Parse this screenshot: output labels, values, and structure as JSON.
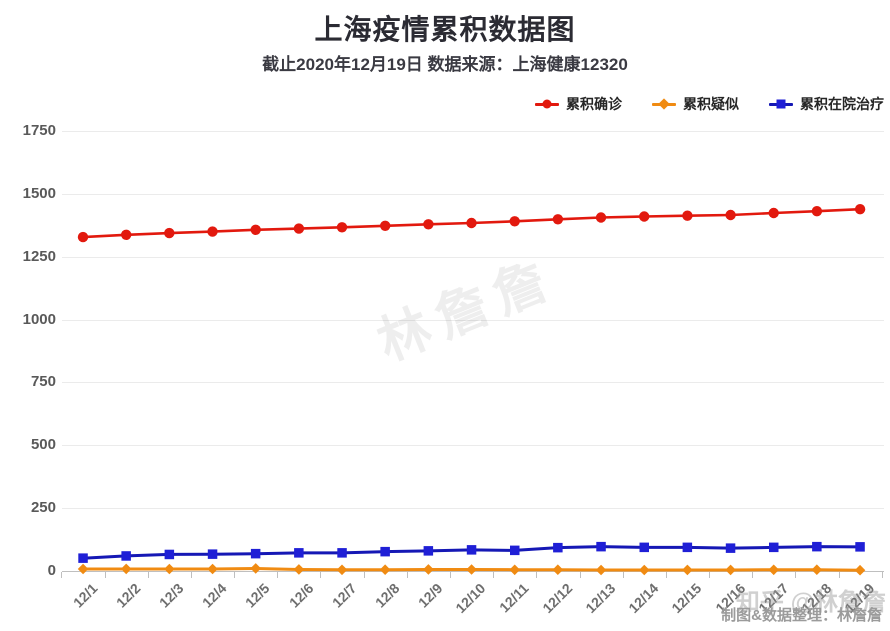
{
  "title": "上海疫情累积数据图",
  "subtitle": "截止2020年12月19日 数据来源：上海健康12320",
  "watermarks": {
    "center": "林詹詹",
    "zhihu": "知乎 @林詹詹",
    "credit": "制图&数据整理：林詹詹"
  },
  "colors": {
    "confirmed_red": "#e2190e",
    "suspected_orange": "#f08b12",
    "hospital_blue_line": "#1518b5",
    "hospital_blue_marker": "#1f1fd6",
    "grid": "#ebebeb",
    "axis": "#bfbfbf",
    "tick_label": "#595959"
  },
  "chart_data": {
    "type": "line",
    "title": "上海疫情累积数据图",
    "subtitle": "截止2020年12月19日 数据来源：上海健康12320",
    "categories": [
      "12/1",
      "12/2",
      "12/3",
      "12/4",
      "12/5",
      "12/6",
      "12/7",
      "12/8",
      "12/9",
      "12/10",
      "12/11",
      "12/12",
      "12/13",
      "12/14",
      "12/15",
      "12/16",
      "12/17",
      "12/18",
      "12/19"
    ],
    "series": [
      {
        "name": "累积确诊",
        "marker": "circle",
        "color": "#e2190e",
        "marker_color": "#e2190e",
        "values": [
          1328,
          1337,
          1344,
          1350,
          1357,
          1362,
          1367,
          1373,
          1379,
          1384,
          1391,
          1399,
          1406,
          1410,
          1413,
          1416,
          1424,
          1431,
          1439
        ]
      },
      {
        "name": "累积疑似",
        "marker": "diamond",
        "color": "#f08b12",
        "marker_color": "#f08b12",
        "values": [
          8,
          8,
          8,
          8,
          10,
          6,
          5,
          5,
          6,
          6,
          5,
          5,
          4,
          4,
          4,
          4,
          5,
          5,
          3
        ]
      },
      {
        "name": "累积在院治疗",
        "marker": "square",
        "color": "#1518b5",
        "marker_color": "#1f1fd6",
        "values": [
          51,
          60,
          66,
          67,
          69,
          72,
          72,
          77,
          80,
          84,
          82,
          93,
          97,
          94,
          94,
          91,
          94,
          97,
          96
        ]
      }
    ],
    "ylim": [
      0,
      1750
    ],
    "yticks": [
      0,
      250,
      500,
      750,
      1000,
      1250,
      1500,
      1750
    ],
    "grid": "horizontal",
    "legend_position": "top-right",
    "xlabel": "",
    "ylabel": ""
  }
}
